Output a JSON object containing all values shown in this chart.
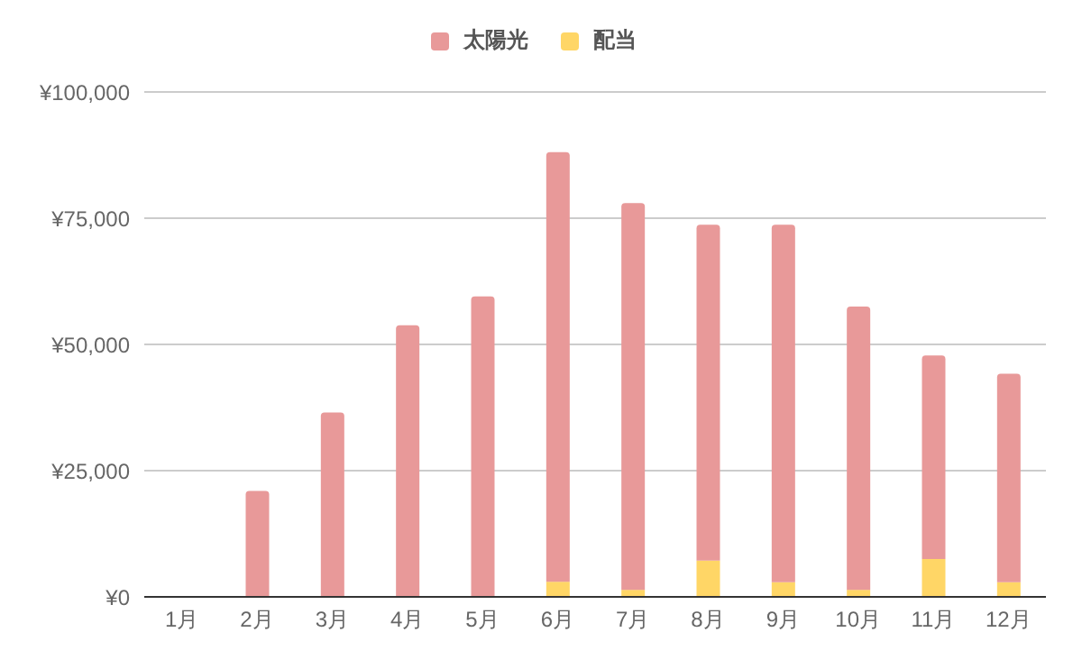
{
  "chart_data": {
    "type": "bar",
    "stacked": true,
    "categories": [
      "1月",
      "2月",
      "3月",
      "4月",
      "5月",
      "6月",
      "7月",
      "8月",
      "9月",
      "10月",
      "11月",
      "12月"
    ],
    "series": [
      {
        "name": "配当",
        "color": "#ffd666",
        "values": [
          0,
          0,
          0,
          0,
          0,
          3000,
          1400,
          7200,
          2900,
          1400,
          7500,
          2900
        ]
      },
      {
        "name": "太陽光",
        "color": "#e89999",
        "values": [
          0,
          21000,
          36500,
          53800,
          59500,
          85100,
          76600,
          66500,
          70800,
          56100,
          40300,
          41300
        ]
      }
    ],
    "ylim": [
      0,
      100000
    ],
    "yticks": [
      {
        "value": 0,
        "label": "¥0"
      },
      {
        "value": 25000,
        "label": "¥25,000"
      },
      {
        "value": 50000,
        "label": "¥50,000"
      },
      {
        "value": 75000,
        "label": "¥75,000"
      },
      {
        "value": 100000,
        "label": "¥100,000"
      }
    ],
    "grid": "y",
    "legend": "top"
  }
}
